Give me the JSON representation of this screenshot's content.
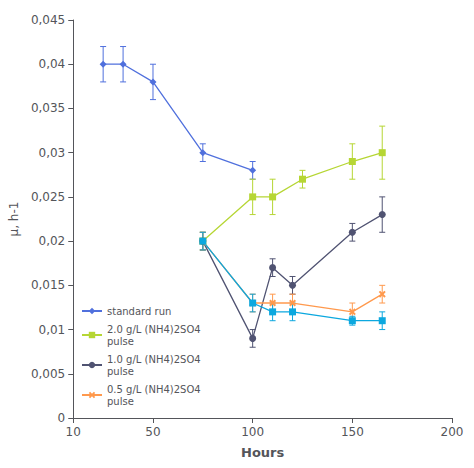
{
  "chart_data": {
    "type": "line",
    "xlabel": "Hours",
    "ylabel": "μ, h-1",
    "xlim": [
      10,
      200
    ],
    "xticks": [
      10,
      50,
      100,
      150,
      200
    ],
    "ylim": [
      0,
      0.045
    ],
    "yticks": [
      0,
      {
        "value": 0.005,
        "label": "0,005"
      },
      {
        "value": 0.01,
        "label": "0,01"
      },
      {
        "value": 0.015,
        "label": "0,015"
      },
      {
        "value": 0.02,
        "label": "0,02"
      },
      {
        "value": 0.025,
        "label": "0,025"
      },
      {
        "value": 0.03,
        "label": "0,03"
      },
      {
        "value": 0.035,
        "label": "0,035"
      },
      {
        "value": 0.04,
        "label": "0,04"
      },
      {
        "value": 0.045,
        "label": "0,045"
      }
    ],
    "grid": false,
    "legend": "lower left",
    "series": [
      {
        "name": "standard run",
        "marker": "diamond",
        "line_style": "solid",
        "x": [
          25,
          35,
          50,
          75,
          100
        ],
        "values": [
          0.04,
          0.04,
          0.038,
          0.03,
          0.028
        ],
        "yerr": [
          0.002,
          0.002,
          0.002,
          0.001,
          0.001
        ]
      },
      {
        "name": "2.0 g/L (NH4)2SO4\npulse",
        "marker": "square",
        "line_style": "solid",
        "x": [
          75,
          100,
          110,
          125,
          150,
          165
        ],
        "values": [
          0.02,
          0.025,
          0.025,
          0.027,
          0.029,
          0.03
        ],
        "yerr": [
          0.001,
          0.002,
          0.002,
          0.001,
          0.002,
          0.003
        ]
      },
      {
        "name": "1.0 g/L (NH4)2SO4\npulse",
        "marker": "circle",
        "line_style": "solid",
        "x": [
          75,
          100,
          110,
          120,
          150,
          165
        ],
        "values": [
          0.02,
          0.009,
          0.017,
          0.015,
          0.021,
          0.023
        ],
        "yerr": [
          0.001,
          0.001,
          0.001,
          0.001,
          0.001,
          0.002
        ]
      },
      {
        "name": "0.5 g/L (NH4)2SO4\npulse",
        "marker": "x",
        "line_style": "solid",
        "x": [
          75,
          100,
          110,
          120,
          150,
          165
        ],
        "values": [
          0.02,
          0.013,
          0.013,
          0.013,
          0.012,
          0.014
        ],
        "yerr": [
          0.001,
          0.001,
          0.001,
          0.001,
          0.001,
          0.001
        ]
      },
      {
        "marker": "square",
        "line_style": "solid",
        "x": [
          75,
          100,
          110,
          120,
          150,
          165
        ],
        "values": [
          0.02,
          0.013,
          0.012,
          0.012,
          0.011,
          0.011
        ],
        "yerr": [
          0.001,
          0.001,
          0.001,
          0.001,
          0.0005,
          0.001
        ]
      }
    ]
  }
}
